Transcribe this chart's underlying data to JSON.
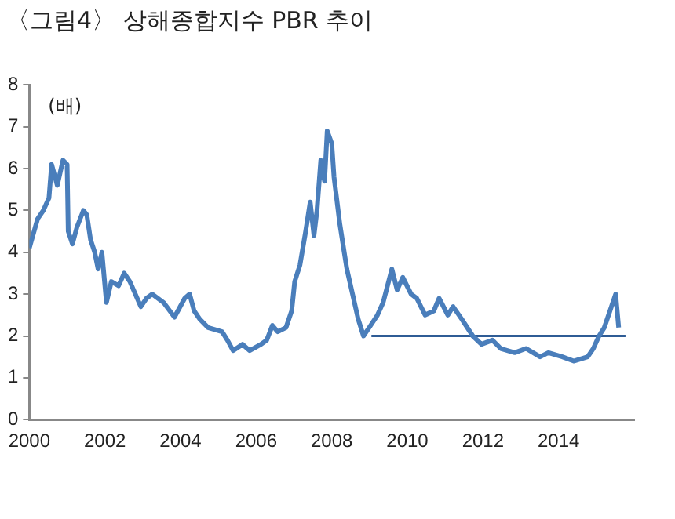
{
  "chart_data": {
    "type": "line",
    "title": "〈그림4〉 상해종합지수 PBR 추이",
    "ylabel": "(배)",
    "xlim": [
      2000,
      2016
    ],
    "xticks": [
      2000,
      2002,
      2004,
      2006,
      2008,
      2010,
      2012,
      2014
    ],
    "ylim": [
      0,
      8
    ],
    "yticks": [
      0,
      1,
      2,
      3,
      4,
      5,
      6,
      7,
      8
    ],
    "grid": false,
    "legend": false,
    "marker": "none",
    "line_style": "solid",
    "series": [
      {
        "color": "#4a7ebb",
        "x": [
          2000.0,
          2000.22,
          2000.37,
          2000.52,
          2000.59,
          2000.74,
          2000.89,
          2001.0,
          2001.03,
          2001.14,
          2001.26,
          2001.43,
          2001.52,
          2001.62,
          2001.73,
          2001.82,
          2001.92,
          2002.04,
          2002.17,
          2002.36,
          2002.51,
          2002.66,
          2002.95,
          2003.1,
          2003.25,
          2003.55,
          2003.84,
          2004.11,
          2004.24,
          2004.36,
          2004.51,
          2004.73,
          2005.1,
          2005.24,
          2005.39,
          2005.64,
          2005.83,
          2006.13,
          2006.28,
          2006.43,
          2006.57,
          2006.79,
          2006.94,
          2007.02,
          2007.16,
          2007.31,
          2007.43,
          2007.53,
          2007.61,
          2007.71,
          2007.81,
          2007.88,
          2008.0,
          2008.06,
          2008.21,
          2008.33,
          2008.4,
          2008.55,
          2008.7,
          2008.84,
          2008.99,
          2009.21,
          2009.36,
          2009.59,
          2009.73,
          2009.88,
          2010.1,
          2010.25,
          2010.47,
          2010.7,
          2010.84,
          2011.07,
          2011.21,
          2011.44,
          2011.73,
          2011.96,
          2012.25,
          2012.47,
          2012.84,
          2013.14,
          2013.51,
          2013.73,
          2014.1,
          2014.4,
          2014.77,
          2014.92,
          2015.07,
          2015.21,
          2015.36,
          2015.51,
          2015.59
        ],
        "values": [
          4.1,
          4.8,
          5.0,
          5.3,
          6.1,
          5.6,
          6.2,
          6.1,
          4.5,
          4.2,
          4.6,
          5.0,
          4.9,
          4.3,
          4.0,
          3.6,
          4.0,
          2.8,
          3.3,
          3.2,
          3.5,
          3.3,
          2.7,
          2.9,
          3.0,
          2.8,
          2.45,
          2.9,
          3.0,
          2.6,
          2.4,
          2.2,
          2.1,
          1.9,
          1.65,
          1.8,
          1.65,
          1.8,
          1.9,
          2.25,
          2.1,
          2.2,
          2.6,
          3.3,
          3.7,
          4.5,
          5.2,
          4.4,
          5.0,
          6.2,
          5.7,
          6.9,
          6.6,
          5.8,
          4.7,
          4.0,
          3.6,
          3.0,
          2.4,
          2.0,
          2.2,
          2.5,
          2.8,
          3.6,
          3.1,
          3.4,
          3.0,
          2.9,
          2.5,
          2.6,
          2.9,
          2.5,
          2.7,
          2.4,
          2.0,
          1.8,
          1.9,
          1.7,
          1.6,
          1.7,
          1.5,
          1.6,
          1.5,
          1.4,
          1.5,
          1.7,
          2.0,
          2.2,
          2.6,
          3.0,
          2.2
        ]
      },
      {
        "color": "#2f5c95",
        "x": [
          2009.05,
          2015.77
        ],
        "values": [
          2,
          2
        ]
      }
    ]
  }
}
